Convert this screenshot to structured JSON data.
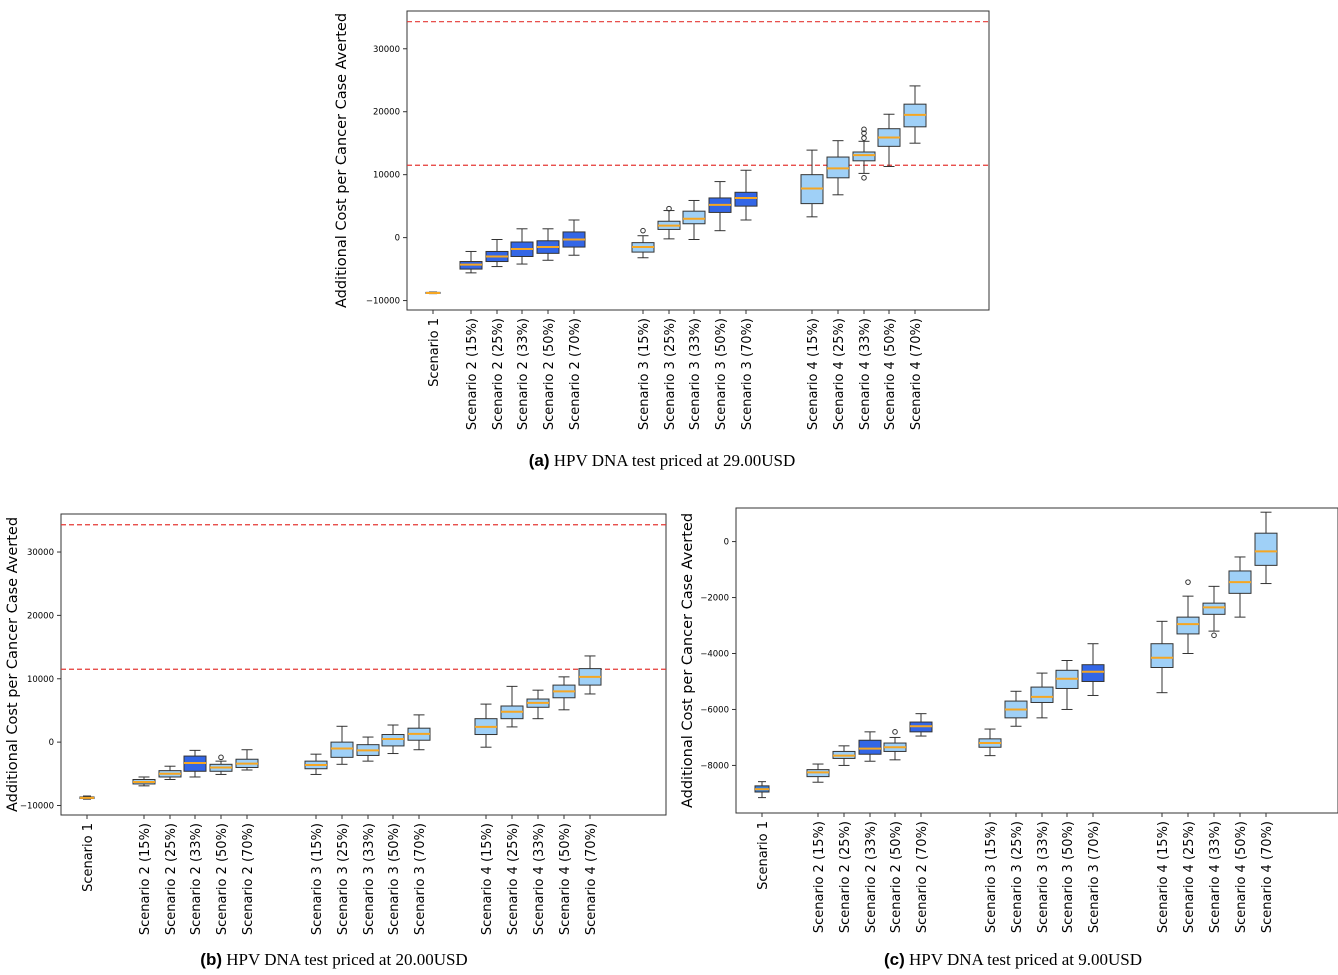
{
  "colors": {
    "light_box": "#9fd0f7",
    "dark_box": "#3366e6",
    "median": "#f5a623",
    "threshold": "#e53935",
    "scenario1_box": "#3b7fd6"
  },
  "captions": [
    {
      "letter": "(a)",
      "text": " HPV DNA test priced at 29.00USD"
    },
    {
      "letter": "(b)",
      "text": " HPV DNA test priced at 20.00USD"
    },
    {
      "letter": "(c)",
      "text": " HPV DNA test priced at 9.00USD"
    }
  ],
  "chart_data": [
    {
      "type": "box",
      "ylabel": "Additional Cost per Cancer Case Averted",
      "ylim": [
        -11500,
        36000
      ],
      "yticks": [
        -10000,
        0,
        10000,
        20000,
        30000
      ],
      "hlines": [
        34300,
        11500
      ],
      "grid": false,
      "categories": [
        "Scenario 1",
        "Scenario 2 (15%)",
        "Scenario 2 (25%)",
        "Scenario 2 (33%)",
        "Scenario 2 (50%)",
        "Scenario 2 (70%)",
        "Scenario 3 (15%)",
        "Scenario 3 (25%)",
        "Scenario 3 (33%)",
        "Scenario 3 (50%)",
        "Scenario 3 (70%)",
        "Scenario 4 (15%)",
        "Scenario 4 (25%)",
        "Scenario 4 (33%)",
        "Scenario 4 (50%)",
        "Scenario 4 (70%)"
      ],
      "boxes": [
        {
          "whislo": -8900,
          "q1": -8850,
          "med": -8800,
          "q3": -8700,
          "whishi": -8650,
          "fliers": []
        },
        {
          "whislo": -5600,
          "q1": -5000,
          "med": -4300,
          "q3": -3800,
          "whishi": -2200,
          "fliers": []
        },
        {
          "whislo": -4600,
          "q1": -3800,
          "med": -3000,
          "q3": -2200,
          "whishi": -300,
          "fliers": []
        },
        {
          "whislo": -4200,
          "q1": -3000,
          "med": -1800,
          "q3": -700,
          "whishi": 1400,
          "fliers": []
        },
        {
          "whislo": -3600,
          "q1": -2500,
          "med": -1500,
          "q3": -500,
          "whishi": 1400,
          "fliers": []
        },
        {
          "whislo": -2800,
          "q1": -1500,
          "med": -300,
          "q3": 900,
          "whishi": 2800,
          "fliers": []
        },
        {
          "whislo": -3200,
          "q1": -2300,
          "med": -1500,
          "q3": -800,
          "whishi": 300,
          "fliers": [
            1100
          ]
        },
        {
          "whislo": -200,
          "q1": 1300,
          "med": 1900,
          "q3": 2600,
          "whishi": 4300,
          "fliers": [
            4600
          ]
        },
        {
          "whislo": -300,
          "q1": 2200,
          "med": 3000,
          "q3": 4200,
          "whishi": 5900,
          "fliers": []
        },
        {
          "whislo": 1100,
          "q1": 4000,
          "med": 5200,
          "q3": 6300,
          "whishi": 8900,
          "fliers": []
        },
        {
          "whislo": 2800,
          "q1": 5000,
          "med": 6300,
          "q3": 7200,
          "whishi": 10700,
          "fliers": []
        },
        {
          "whislo": 3300,
          "q1": 5400,
          "med": 7800,
          "q3": 10000,
          "whishi": 13900,
          "fliers": []
        },
        {
          "whislo": 6800,
          "q1": 9500,
          "med": 11000,
          "q3": 12800,
          "whishi": 15400,
          "fliers": []
        },
        {
          "whislo": 10200,
          "q1": 12200,
          "med": 13100,
          "q3": 13600,
          "whishi": 15300,
          "fliers": [
            9500,
            15800,
            16600,
            17200
          ]
        },
        {
          "whislo": 11300,
          "q1": 14500,
          "med": 15900,
          "q3": 17300,
          "whishi": 19600,
          "fliers": []
        },
        {
          "whislo": 15000,
          "q1": 17600,
          "med": 19500,
          "q3": 21200,
          "whishi": 24100,
          "fliers": []
        }
      ]
    },
    {
      "type": "box",
      "ylabel": "Additional Cost per Cancer Case Averted",
      "ylim": [
        -11500,
        36000
      ],
      "yticks": [
        -10000,
        0,
        10000,
        20000,
        30000
      ],
      "hlines": [
        34300,
        11500
      ],
      "grid": false,
      "categories": [
        "Scenario 1",
        "Scenario 2 (15%)",
        "Scenario 2 (25%)",
        "Scenario 2 (33%)",
        "Scenario 2 (50%)",
        "Scenario 2 (70%)",
        "Scenario 3 (15%)",
        "Scenario 3 (25%)",
        "Scenario 3 (33%)",
        "Scenario 3 (50%)",
        "Scenario 3 (70%)",
        "Scenario 4 (15%)",
        "Scenario 4 (25%)",
        "Scenario 4 (33%)",
        "Scenario 4 (50%)",
        "Scenario 4 (70%)"
      ],
      "boxes": [
        {
          "whislo": -9000,
          "q1": -8900,
          "med": -8800,
          "q3": -8650,
          "whishi": -8500,
          "fliers": []
        },
        {
          "whislo": -6900,
          "q1": -6600,
          "med": -6300,
          "q3": -5900,
          "whishi": -5500,
          "fliers": []
        },
        {
          "whislo": -5900,
          "q1": -5500,
          "med": -5000,
          "q3": -4500,
          "whishi": -3800,
          "fliers": []
        },
        {
          "whislo": -5500,
          "q1": -4600,
          "med": -3300,
          "q3": -2200,
          "whishi": -1300,
          "fliers": []
        },
        {
          "whislo": -5100,
          "q1": -4600,
          "med": -4000,
          "q3": -3500,
          "whishi": -3000,
          "fliers": [
            -2400
          ]
        },
        {
          "whislo": -4400,
          "q1": -4000,
          "med": -3400,
          "q3": -2700,
          "whishi": -1200,
          "fliers": []
        },
        {
          "whislo": -5100,
          "q1": -4200,
          "med": -3600,
          "q3": -3000,
          "whishi": -1900,
          "fliers": []
        },
        {
          "whislo": -3500,
          "q1": -2400,
          "med": -1000,
          "q3": 0,
          "whishi": 2500,
          "fliers": []
        },
        {
          "whislo": -3000,
          "q1": -2100,
          "med": -1300,
          "q3": -400,
          "whishi": 800,
          "fliers": []
        },
        {
          "whislo": -1800,
          "q1": -600,
          "med": 500,
          "q3": 1200,
          "whishi": 2700,
          "fliers": []
        },
        {
          "whislo": -1200,
          "q1": 300,
          "med": 1300,
          "q3": 2200,
          "whishi": 4300,
          "fliers": []
        },
        {
          "whislo": -800,
          "q1": 1200,
          "med": 2400,
          "q3": 3700,
          "whishi": 6000,
          "fliers": []
        },
        {
          "whislo": 2400,
          "q1": 3700,
          "med": 4800,
          "q3": 5700,
          "whishi": 8800,
          "fliers": []
        },
        {
          "whislo": 3700,
          "q1": 5500,
          "med": 6200,
          "q3": 6800,
          "whishi": 8200,
          "fliers": []
        },
        {
          "whislo": 5100,
          "q1": 7000,
          "med": 8000,
          "q3": 9000,
          "whishi": 10300,
          "fliers": []
        },
        {
          "whislo": 7600,
          "q1": 9000,
          "med": 10300,
          "q3": 11600,
          "whishi": 13600,
          "fliers": []
        }
      ]
    },
    {
      "type": "box",
      "ylabel": "Additional Cost per Cancer Case Averted",
      "ylim": [
        -9700,
        1200
      ],
      "yticks": [
        -8000,
        -6000,
        -4000,
        -2000,
        0
      ],
      "hlines": [],
      "grid": false,
      "categories": [
        "Scenario 1",
        "Scenario 2 (15%)",
        "Scenario 2 (25%)",
        "Scenario 2 (33%)",
        "Scenario 2 (50%)",
        "Scenario 2 (70%)",
        "Scenario 3 (15%)",
        "Scenario 3 (25%)",
        "Scenario 3 (33%)",
        "Scenario 3 (50%)",
        "Scenario 3 (70%)",
        "Scenario 4 (15%)",
        "Scenario 4 (25%)",
        "Scenario 4 (33%)",
        "Scenario 4 (50%)",
        "Scenario 4 (70%)"
      ],
      "boxes": [
        {
          "whislo": -9150,
          "q1": -8950,
          "med": -8850,
          "q3": -8730,
          "whishi": -8580,
          "fliers": []
        },
        {
          "whislo": -8600,
          "q1": -8400,
          "med": -8250,
          "q3": -8150,
          "whishi": -7950,
          "fliers": []
        },
        {
          "whislo": -8000,
          "q1": -7750,
          "med": -7650,
          "q3": -7500,
          "whishi": -7300,
          "fliers": []
        },
        {
          "whislo": -7850,
          "q1": -7600,
          "med": -7400,
          "q3": -7100,
          "whishi": -6800,
          "fliers": []
        },
        {
          "whislo": -7800,
          "q1": -7500,
          "med": -7350,
          "q3": -7200,
          "whishi": -7000,
          "fliers": [
            -6800
          ]
        },
        {
          "whislo": -6950,
          "q1": -6800,
          "med": -6600,
          "q3": -6450,
          "whishi": -6150,
          "fliers": []
        },
        {
          "whislo": -7650,
          "q1": -7350,
          "med": -7200,
          "q3": -7050,
          "whishi": -6700,
          "fliers": []
        },
        {
          "whislo": -6600,
          "q1": -6300,
          "med": -6000,
          "q3": -5700,
          "whishi": -5350,
          "fliers": []
        },
        {
          "whislo": -6300,
          "q1": -5750,
          "med": -5550,
          "q3": -5200,
          "whishi": -4700,
          "fliers": []
        },
        {
          "whislo": -6000,
          "q1": -5250,
          "med": -4900,
          "q3": -4600,
          "whishi": -4250,
          "fliers": []
        },
        {
          "whislo": -5500,
          "q1": -5000,
          "med": -4650,
          "q3": -4400,
          "whishi": -3650,
          "fliers": []
        },
        {
          "whislo": -5400,
          "q1": -4500,
          "med": -4150,
          "q3": -3650,
          "whishi": -2850,
          "fliers": []
        },
        {
          "whislo": -4000,
          "q1": -3300,
          "med": -2950,
          "q3": -2700,
          "whishi": -1950,
          "fliers": [
            -1450
          ]
        },
        {
          "whislo": -3200,
          "q1": -2600,
          "med": -2350,
          "q3": -2200,
          "whishi": -1600,
          "fliers": [
            -3350
          ]
        },
        {
          "whislo": -2700,
          "q1": -1850,
          "med": -1450,
          "q3": -1050,
          "whishi": -550,
          "fliers": []
        },
        {
          "whislo": -1500,
          "q1": -850,
          "med": -350,
          "q3": 300,
          "whishi": 1050,
          "fliers": []
        }
      ]
    }
  ]
}
